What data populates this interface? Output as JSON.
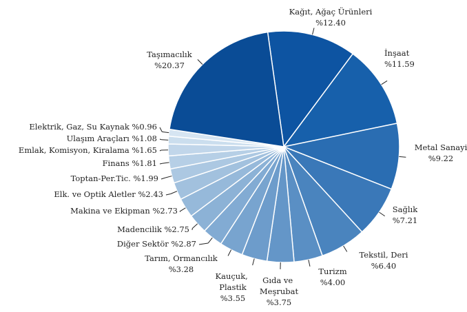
{
  "chart_data": {
    "type": "pie",
    "categories": [
      "Kağıt, Ağaç Ürünleri",
      "İnşaat",
      "Metal Sanayi",
      "Sağlık",
      "Tekstil, Deri",
      "Turizm",
      "Gıda ve Meşrubat",
      "Kauçuk, Plastik",
      "Tarım, Ormancılık",
      "Diğer Sektör",
      "Madencilik",
      "Makina ve Ekipman",
      "Elk. ve Optik Aletler",
      "Toptan-Per.Tic.",
      "Finans",
      "Emlak, Komisyon, Kiralama",
      "Ulaşım Araçları",
      "Elektrik, Gaz, Su Kaynak",
      "Taşımacılık"
    ],
    "values": [
      12.4,
      11.59,
      9.22,
      7.21,
      6.4,
      4.0,
      3.75,
      3.55,
      3.28,
      2.87,
      2.75,
      2.73,
      2.43,
      1.99,
      1.81,
      1.65,
      1.08,
      0.96,
      20.37
    ],
    "value_labels": [
      "%12.40",
      "%11.59",
      "%9.22",
      "%7.21",
      "%6.40",
      "%4.00",
      "%3.75",
      "%3.55",
      "%3.28",
      "%2.87",
      "%2.75",
      "%2.73",
      "%2.43",
      "%1.99",
      "%1.81",
      "%1.65",
      "%1.08",
      "%0.96",
      "%20.37"
    ],
    "colors": [
      "#0d54a2",
      "#1760ab",
      "#2a6db2",
      "#3a78b8",
      "#4a84be",
      "#5a8fc4",
      "#6496c8",
      "#6d9ccb",
      "#78a4cf",
      "#82abd3",
      "#8cb2d6",
      "#96b9da",
      "#a2c1de",
      "#acc8e2",
      "#b6cfe6",
      "#c1d6ea",
      "#cbdeee",
      "#d6e5f2",
      "#0a4c96"
    ]
  }
}
